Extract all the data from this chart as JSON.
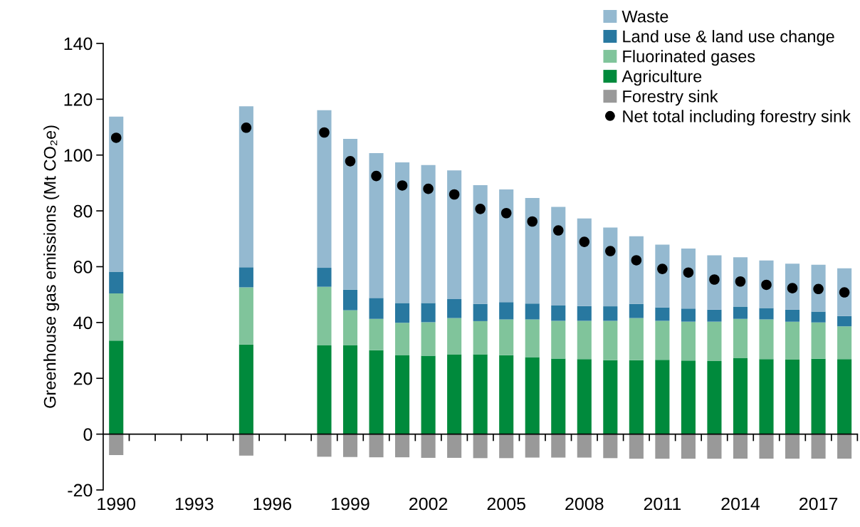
{
  "chart_data": {
    "type": "bar",
    "stacked": true,
    "ylabel": "Greenhouse gas emissions (Mt CO₂e)",
    "categories": [
      "1990",
      null,
      null,
      "1993",
      null,
      null,
      "1996",
      null,
      null,
      "1999",
      null,
      null,
      "2002",
      null,
      null,
      "2005",
      null,
      null,
      "2008",
      null,
      null,
      "2011",
      null,
      null,
      "2014",
      null,
      null,
      "2017",
      null
    ],
    "series": [
      {
        "name": "Agriculture",
        "color": "#008a3c",
        "values": [
          33.5,
          null,
          null,
          null,
          null,
          32.1,
          null,
          null,
          31.8,
          31.8,
          30.1,
          28.2,
          28.1,
          28.6,
          28.6,
          28.3,
          27.6,
          27.1,
          26.9,
          26.5,
          26.5,
          26.6,
          26.4,
          26.2,
          27.2,
          26.9,
          26.7,
          27.0,
          26.9
        ]
      },
      {
        "name": "Fluorinated gases",
        "color": "#80c49b",
        "values": [
          16.9,
          null,
          null,
          null,
          null,
          20.5,
          null,
          null,
          21.0,
          12.6,
          11.2,
          11.7,
          12.0,
          13.0,
          11.9,
          12.8,
          13.5,
          13.5,
          13.7,
          14.1,
          15.1,
          14.0,
          13.9,
          14.1,
          14.1,
          14.2,
          13.6,
          13.0,
          11.7
        ]
      },
      {
        "name": "Land use & land use change",
        "color": "#2878a0",
        "values": [
          7.8,
          null,
          null,
          null,
          null,
          7.2,
          null,
          null,
          6.8,
          7.4,
          7.5,
          7.1,
          6.9,
          6.8,
          6.2,
          6.2,
          5.7,
          5.5,
          5.3,
          5.2,
          5.1,
          4.8,
          4.7,
          4.3,
          4.4,
          4.1,
          4.3,
          3.9,
          3.7
        ]
      },
      {
        "name": "Waste",
        "color": "#94b9d0",
        "values": [
          55.6,
          null,
          null,
          null,
          null,
          57.7,
          null,
          null,
          56.5,
          54.0,
          51.9,
          50.4,
          49.4,
          46.1,
          42.5,
          40.4,
          37.8,
          35.3,
          31.4,
          28.2,
          24.2,
          22.5,
          21.5,
          19.5,
          17.7,
          17.0,
          16.5,
          16.8,
          17.1
        ]
      },
      {
        "name": "Forestry sink",
        "color": "#999999",
        "values": [
          -7.5,
          null,
          null,
          null,
          null,
          -7.7,
          null,
          null,
          -8.1,
          -8.2,
          -8.3,
          -8.3,
          -8.5,
          -8.5,
          -8.6,
          -8.6,
          -8.4,
          -8.4,
          -8.4,
          -8.6,
          -8.8,
          -8.8,
          -8.8,
          -8.8,
          -8.8,
          -8.8,
          -8.8,
          -8.8,
          -8.8
        ]
      },
      {
        "name": "Net total including forestry sink",
        "type": "scatter",
        "color": "#000000",
        "values": [
          106.2,
          null,
          null,
          null,
          null,
          109.8,
          null,
          null,
          108.1,
          97.8,
          92.5,
          89.1,
          87.9,
          85.9,
          80.7,
          79.2,
          76.2,
          73.0,
          68.9,
          65.6,
          62.3,
          59.2,
          57.9,
          55.4,
          54.7,
          53.5,
          52.3,
          52.0,
          50.8
        ]
      }
    ],
    "ylim": [
      -20,
      140
    ],
    "yticks": [
      -20,
      0,
      20,
      40,
      60,
      80,
      100,
      120,
      140
    ],
    "legend": "top right",
    "marker": "circle"
  }
}
